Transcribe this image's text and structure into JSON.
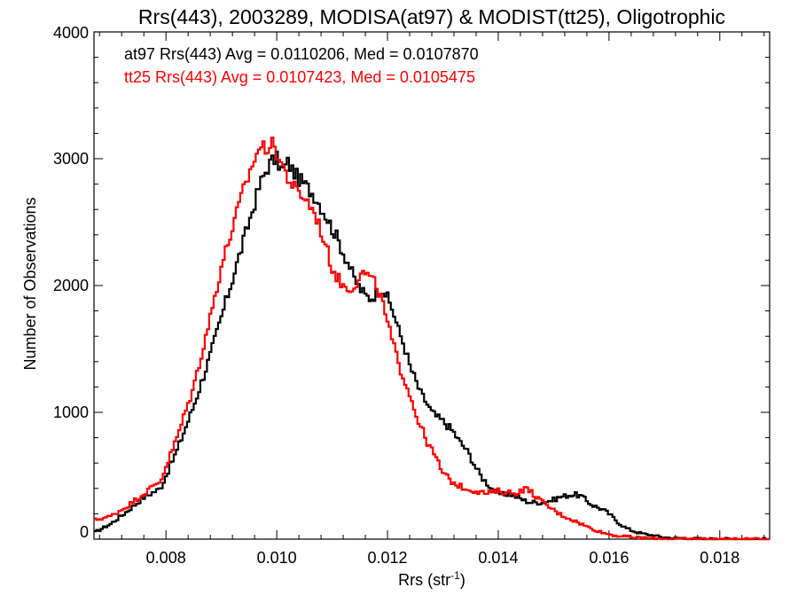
{
  "chart_data": {
    "type": "line",
    "title": "Rrs(443), 2003289, MODISA(at97) & MODIST(tt25), Oligotrophic",
    "xlabel": "Rrs (str",
    "xlabel_sup": "-1",
    "xlabel_close": ")",
    "ylabel": "Number of Observations",
    "xlim": [
      0.0067,
      0.0189
    ],
    "ylim": [
      0,
      4000
    ],
    "xticks": [
      0.008,
      0.01,
      0.012,
      0.014,
      0.016,
      0.018
    ],
    "xtick_labels": [
      "0.008",
      "0.010",
      "0.012",
      "0.014",
      "0.016",
      "0.018"
    ],
    "yticks": [
      0,
      1000,
      2000,
      3000,
      4000
    ],
    "ytick_labels": [
      "0",
      "1000",
      "2000",
      "3000",
      "4000"
    ],
    "grid": false,
    "legend_position": "top-left",
    "colors": {
      "at97": "#000000",
      "tt25": "#ff0000"
    },
    "annotations": [
      "at97 Rrs(443) Avg = 0.0110206, Med = 0.0107870",
      "tt25 Rrs(443) Avg = 0.0107423, Med = 0.0105475"
    ],
    "series": [
      {
        "color": "#000000",
        "x": [
          0.0067,
          0.007,
          0.0073,
          0.0076,
          0.0079,
          0.0082,
          0.0085,
          0.0088,
          0.009,
          0.0092,
          0.0094,
          0.0096,
          0.0097,
          0.0098,
          0.0099,
          0.01,
          0.0101,
          0.0102,
          0.0103,
          0.0104,
          0.0105,
          0.0106,
          0.0107,
          0.0108,
          0.0109,
          0.011,
          0.0111,
          0.0112,
          0.0113,
          0.0114,
          0.0115,
          0.0116,
          0.0117,
          0.0118,
          0.0119,
          0.012,
          0.0121,
          0.0122,
          0.0123,
          0.0124,
          0.0125,
          0.0126,
          0.0127,
          0.0128,
          0.0129,
          0.013,
          0.0131,
          0.0132,
          0.0133,
          0.0134,
          0.0135,
          0.0136,
          0.0137,
          0.0138,
          0.0139,
          0.014,
          0.0141,
          0.0142,
          0.0143,
          0.0144,
          0.0145,
          0.0146,
          0.0147,
          0.0148,
          0.0149,
          0.015,
          0.0151,
          0.0152,
          0.0153,
          0.0154,
          0.0155,
          0.0156,
          0.0157,
          0.0158,
          0.0159,
          0.016,
          0.0161,
          0.0162,
          0.0163,
          0.0164,
          0.0165,
          0.0166,
          0.0167,
          0.0168,
          0.0169,
          0.017,
          0.0171,
          0.0172,
          0.0173,
          0.0174,
          0.0175,
          0.0176,
          0.0177,
          0.0178,
          0.0179,
          0.018,
          0.0181,
          0.0182,
          0.0183,
          0.0184,
          0.0185,
          0.0186,
          0.0187,
          0.0188,
          0.0189
        ],
        "y": [
          50,
          120,
          220,
          330,
          400,
          700,
          1050,
          1450,
          1750,
          2050,
          2350,
          2650,
          2800,
          2900,
          2980,
          3000,
          2900,
          2970,
          2900,
          2840,
          2800,
          2750,
          2700,
          2620,
          2540,
          2450,
          2370,
          2260,
          2170,
          2050,
          1980,
          1920,
          1900,
          1940,
          1990,
          1900,
          1800,
          1650,
          1530,
          1370,
          1260,
          1150,
          1080,
          1000,
          960,
          930,
          890,
          840,
          770,
          720,
          650,
          560,
          490,
          440,
          390,
          360,
          350,
          360,
          340,
          320,
          300,
          290,
          290,
          290,
          300,
          310,
          330,
          340,
          350,
          350,
          340,
          300,
          270,
          250,
          230,
          200,
          160,
          120,
          90,
          70,
          55,
          45,
          35,
          30,
          20,
          15,
          10,
          8,
          6,
          5,
          4,
          3,
          2,
          2,
          1,
          1,
          1,
          0,
          0,
          0,
          0,
          0,
          0,
          0,
          0
        ]
      },
      {
        "color": "#ff0000",
        "x": [
          0.0067,
          0.007,
          0.0073,
          0.0076,
          0.0079,
          0.0082,
          0.0085,
          0.0088,
          0.009,
          0.0092,
          0.0094,
          0.0096,
          0.0097,
          0.0098,
          0.0099,
          0.01,
          0.0101,
          0.0102,
          0.0103,
          0.0104,
          0.0105,
          0.0106,
          0.0107,
          0.0108,
          0.0109,
          0.011,
          0.0111,
          0.0112,
          0.0113,
          0.0114,
          0.0115,
          0.0116,
          0.0117,
          0.0118,
          0.0119,
          0.012,
          0.0121,
          0.0122,
          0.0123,
          0.0124,
          0.0125,
          0.0126,
          0.0127,
          0.0128,
          0.0129,
          0.013,
          0.0131,
          0.0132,
          0.0133,
          0.0134,
          0.0135,
          0.0136,
          0.0137,
          0.0138,
          0.0139,
          0.014,
          0.0141,
          0.0142,
          0.0143,
          0.0144,
          0.0145,
          0.0146,
          0.0147,
          0.0148,
          0.0149,
          0.015,
          0.0151,
          0.0152,
          0.0153,
          0.0154,
          0.0155,
          0.0156,
          0.0157,
          0.0158,
          0.0159,
          0.016,
          0.0161,
          0.0162,
          0.0163,
          0.0164,
          0.0165,
          0.0166,
          0.0167,
          0.0168,
          0.0169,
          0.017,
          0.0171,
          0.0172,
          0.0173,
          0.0174,
          0.0175,
          0.0176,
          0.0177,
          0.0178,
          0.0179,
          0.018,
          0.0181,
          0.0182,
          0.0183,
          0.0184,
          0.0185,
          0.0186,
          0.0187,
          0.0188,
          0.0189
        ],
        "y": [
          150,
          180,
          260,
          360,
          460,
          800,
          1200,
          1750,
          2150,
          2450,
          2750,
          3000,
          3100,
          3080,
          3120,
          3050,
          2950,
          2850,
          2780,
          2720,
          2700,
          2630,
          2560,
          2430,
          2290,
          2140,
          2060,
          2000,
          1980,
          2000,
          2080,
          2100,
          2050,
          2000,
          1880,
          1700,
          1540,
          1380,
          1270,
          1150,
          1000,
          890,
          780,
          700,
          620,
          520,
          480,
          440,
          420,
          400,
          390,
          380,
          370,
          360,
          370,
          380,
          370,
          370,
          360,
          380,
          400,
          370,
          330,
          290,
          260,
          230,
          200,
          180,
          160,
          140,
          120,
          100,
          80,
          65,
          50,
          40,
          30,
          25,
          20,
          15,
          12,
          10,
          8,
          6,
          5,
          4,
          3,
          3,
          2,
          2,
          1,
          1,
          1,
          0,
          0,
          0,
          0,
          0,
          0,
          0,
          0,
          0,
          0,
          0,
          0
        ]
      }
    ]
  }
}
